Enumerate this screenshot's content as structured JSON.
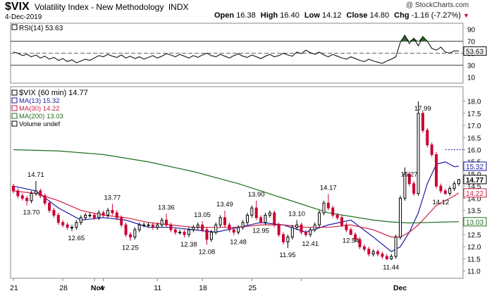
{
  "header": {
    "symbol": "$VIX",
    "name": "Volatility Index - New Methodology",
    "exchange": "INDX",
    "date": "4-Dec-2019",
    "copyright": "@ StockCharts.com",
    "ohlc": [
      {
        "label": "Open",
        "value": "16.38"
      },
      {
        "label": "High",
        "value": "16.40"
      },
      {
        "label": "Low",
        "value": "14.12"
      },
      {
        "label": "Close",
        "value": "14.80"
      },
      {
        "label": "Chg",
        "value": "-1.16 (-7.27%)"
      }
    ],
    "chg_marker": "▼"
  },
  "colors": {
    "candle_up": "#000000",
    "candle_down": "#cc0033",
    "ma13": "#1a1aa6",
    "ma30": "#cc2244",
    "ma200": "#1f6e1f",
    "rsi": "#000000",
    "rsi_fill": "#2f6e2f",
    "current_price_tag": "#000000"
  },
  "chart_data": [
    {
      "type": "line",
      "title": "RSI(14) 53.63",
      "legend": [
        {
          "name": "RSI(14) 53.63"
        }
      ],
      "ylim": [
        0,
        100
      ],
      "y_ticks": [
        "10",
        "30",
        "50",
        "70",
        "90"
      ],
      "reference_lines": [
        30,
        50,
        70
      ],
      "last_value_label": "53.63",
      "series": [
        {
          "name": "RSI(14)",
          "x": [
            0,
            1,
            2,
            3,
            4,
            5,
            6,
            7,
            8,
            9,
            10,
            11,
            12,
            13,
            14,
            15,
            16,
            17,
            18,
            19,
            20,
            21,
            22,
            23,
            24,
            25,
            26,
            27,
            28,
            29,
            30,
            31,
            32,
            33,
            34,
            35,
            36,
            37,
            38,
            39,
            40,
            41,
            42,
            43,
            44,
            45,
            46,
            47,
            48,
            49,
            50,
            51,
            52,
            53,
            54,
            55,
            56,
            57,
            58,
            59,
            60,
            61,
            62,
            63,
            64,
            65,
            66,
            67,
            68,
            69,
            70,
            71,
            72,
            73,
            74,
            75,
            76,
            77,
            78,
            79,
            80,
            81,
            82,
            83,
            84,
            85,
            86,
            87,
            88,
            89,
            90,
            91,
            92,
            93,
            94,
            95,
            96,
            97,
            98,
            99
          ],
          "values": [
            52,
            50,
            46,
            48,
            44,
            47,
            42,
            45,
            40,
            43,
            38,
            41,
            36,
            39,
            34,
            37,
            40,
            38,
            42,
            46,
            44,
            48,
            45,
            43,
            47,
            42,
            45,
            41,
            44,
            40,
            43,
            46,
            42,
            45,
            49,
            47,
            44,
            48,
            45,
            42,
            46,
            43,
            47,
            50,
            46,
            44,
            48,
            45,
            42,
            46,
            49,
            45,
            43,
            47,
            44,
            41,
            45,
            48,
            44,
            46,
            50,
            47,
            45,
            52,
            49,
            55,
            51,
            48,
            52,
            47,
            44,
            48,
            45,
            42,
            40,
            44,
            41,
            38,
            36,
            40,
            37,
            35,
            33,
            37,
            40,
            44,
            68,
            80,
            66,
            75,
            62,
            78,
            70,
            58,
            55,
            60,
            52,
            50,
            54,
            53.63
          ]
        }
      ]
    },
    {
      "type": "candlestick",
      "title": "$VIX (60 min) 14.77",
      "ylim": [
        10.7,
        18.6
      ],
      "y_ticks": [
        "11.0",
        "11.5",
        "12.0",
        "12.5",
        "13.0",
        "13.5",
        "14.0",
        "14.5",
        "15.0",
        "15.5",
        "16.0",
        "16.5",
        "17.0",
        "17.5",
        "18.0"
      ],
      "x_tick_labels": [
        "21",
        "28",
        "Nov",
        "4",
        "11",
        "18",
        "25",
        "Dec"
      ],
      "legend": [
        {
          "name": "$VIX (60 min) 14.77"
        },
        {
          "name": "MA(13) 15.32"
        },
        {
          "name": "MA(30) 14.22"
        },
        {
          "name": "MA(200) 13.03"
        },
        {
          "name": "Volume undef"
        }
      ],
      "right_tags": [
        "15.32",
        "14.77",
        "14.22",
        "13.03"
      ],
      "annotations": [
        {
          "text": "14.71",
          "x": 5,
          "y": 14.71
        },
        {
          "text": "13.70",
          "x": 4,
          "y": 13.7
        },
        {
          "text": "12.65",
          "x": 14,
          "y": 12.65
        },
        {
          "text": "13.77",
          "x": 22,
          "y": 13.77
        },
        {
          "text": "12.25",
          "x": 26,
          "y": 12.25
        },
        {
          "text": "13.36",
          "x": 34,
          "y": 13.36
        },
        {
          "text": "12.38",
          "x": 39,
          "y": 12.38
        },
        {
          "text": "13.05",
          "x": 42,
          "y": 13.05
        },
        {
          "text": "12.08",
          "x": 43,
          "y": 12.08
        },
        {
          "text": "13.49",
          "x": 47,
          "y": 13.49
        },
        {
          "text": "12.48",
          "x": 50,
          "y": 12.48
        },
        {
          "text": "13.90",
          "x": 54,
          "y": 13.9
        },
        {
          "text": "12.95",
          "x": 55,
          "y": 12.95
        },
        {
          "text": "11.95",
          "x": 61,
          "y": 11.95
        },
        {
          "text": "13.10",
          "x": 63,
          "y": 13.1
        },
        {
          "text": "12.41",
          "x": 66,
          "y": 12.41
        },
        {
          "text": "14.17",
          "x": 70,
          "y": 14.17
        },
        {
          "text": "12.54",
          "x": 75,
          "y": 12.54
        },
        {
          "text": "11.44",
          "x": 84,
          "y": 11.44
        },
        {
          "text": "15.27",
          "x": 88,
          "y": 15.27
        },
        {
          "text": "17.99",
          "x": 91,
          "y": 17.99
        },
        {
          "text": "14.12",
          "x": 95,
          "y": 14.12
        }
      ],
      "candles": {
        "x": [
          0,
          1,
          2,
          3,
          4,
          5,
          6,
          7,
          8,
          9,
          10,
          11,
          12,
          13,
          14,
          15,
          16,
          17,
          18,
          19,
          20,
          21,
          22,
          23,
          24,
          25,
          26,
          27,
          28,
          29,
          30,
          31,
          32,
          33,
          34,
          35,
          36,
          37,
          38,
          39,
          40,
          41,
          42,
          43,
          44,
          45,
          46,
          47,
          48,
          49,
          50,
          51,
          52,
          53,
          54,
          55,
          56,
          57,
          58,
          59,
          60,
          61,
          62,
          63,
          64,
          65,
          66,
          67,
          68,
          69,
          70,
          71,
          72,
          73,
          74,
          75,
          76,
          77,
          78,
          79,
          80,
          81,
          82,
          83,
          84,
          85,
          86,
          87,
          88,
          89,
          90,
          91,
          92,
          93,
          94,
          95,
          96,
          97,
          98,
          99
        ],
        "open": [
          14.5,
          14.3,
          14.1,
          14.0,
          13.9,
          14.2,
          14.3,
          14.1,
          13.8,
          13.5,
          13.3,
          13.0,
          12.9,
          12.8,
          12.8,
          13.0,
          13.2,
          13.3,
          13.3,
          13.2,
          13.4,
          13.3,
          13.5,
          13.4,
          13.2,
          12.9,
          12.5,
          12.4,
          12.7,
          12.9,
          12.9,
          12.9,
          12.8,
          12.9,
          13.1,
          12.9,
          12.7,
          12.6,
          12.6,
          12.5,
          12.7,
          12.8,
          12.9,
          12.7,
          12.3,
          12.6,
          12.9,
          13.2,
          12.9,
          12.7,
          12.6,
          12.8,
          13.0,
          13.3,
          13.6,
          13.2,
          13.0,
          13.3,
          13.4,
          12.9,
          12.5,
          12.2,
          12.4,
          12.8,
          12.9,
          12.6,
          12.5,
          12.7,
          12.9,
          13.4,
          13.8,
          13.6,
          13.3,
          13.2,
          12.9,
          12.7,
          12.5,
          12.3,
          12.0,
          11.9,
          11.7,
          11.8,
          11.7,
          11.6,
          11.5,
          11.6,
          12.4,
          14.0,
          15.0,
          14.6,
          14.2,
          17.5,
          16.8,
          16.2,
          15.8,
          14.5,
          14.3,
          14.2,
          14.4,
          14.6
        ],
        "close": [
          14.3,
          14.1,
          14.0,
          13.9,
          14.2,
          14.3,
          14.1,
          13.8,
          13.5,
          13.3,
          13.0,
          12.9,
          12.8,
          12.8,
          13.0,
          13.2,
          13.3,
          13.3,
          13.2,
          13.4,
          13.3,
          13.5,
          13.4,
          13.2,
          12.9,
          12.5,
          12.4,
          12.7,
          12.9,
          12.9,
          12.9,
          12.8,
          12.9,
          13.1,
          12.9,
          12.7,
          12.6,
          12.6,
          12.5,
          12.7,
          12.8,
          12.9,
          12.7,
          12.3,
          12.6,
          12.9,
          13.2,
          12.9,
          12.7,
          12.6,
          12.8,
          13.0,
          13.3,
          13.6,
          13.2,
          13.0,
          13.3,
          13.4,
          12.9,
          12.5,
          12.2,
          12.4,
          12.8,
          12.9,
          12.6,
          12.5,
          12.7,
          12.9,
          13.4,
          13.8,
          13.6,
          13.3,
          13.2,
          12.9,
          12.7,
          12.5,
          12.3,
          12.0,
          11.9,
          11.7,
          11.8,
          11.7,
          11.6,
          11.5,
          11.6,
          12.4,
          14.0,
          15.0,
          14.6,
          14.2,
          17.5,
          16.8,
          16.2,
          15.8,
          14.5,
          14.3,
          14.2,
          14.4,
          14.6,
          14.77
        ],
        "high": [
          14.6,
          14.4,
          14.2,
          14.1,
          14.3,
          14.71,
          14.4,
          14.2,
          13.9,
          13.6,
          13.4,
          13.1,
          13.0,
          12.9,
          13.1,
          13.3,
          13.4,
          13.4,
          13.4,
          13.5,
          13.5,
          13.6,
          13.77,
          13.5,
          13.3,
          13.0,
          12.6,
          12.8,
          13.0,
          13.0,
          13.0,
          13.0,
          13.0,
          13.2,
          13.36,
          13.0,
          12.8,
          12.7,
          12.7,
          12.8,
          12.9,
          13.0,
          13.05,
          12.8,
          12.7,
          13.0,
          13.3,
          13.49,
          13.0,
          12.8,
          12.9,
          13.1,
          13.4,
          13.7,
          13.9,
          13.3,
          13.4,
          13.5,
          13.5,
          13.0,
          12.6,
          12.5,
          12.9,
          13.1,
          13.0,
          12.7,
          12.8,
          13.0,
          13.5,
          13.9,
          14.17,
          13.7,
          13.4,
          13.3,
          13.0,
          12.8,
          12.6,
          12.4,
          12.1,
          12.0,
          11.9,
          11.9,
          11.8,
          11.7,
          11.7,
          12.5,
          14.1,
          15.27,
          15.1,
          14.7,
          17.99,
          17.6,
          16.9,
          16.3,
          15.9,
          14.6,
          14.4,
          14.5,
          14.7,
          14.8
        ],
        "low": [
          14.2,
          14.0,
          13.9,
          13.7,
          13.8,
          14.1,
          14.0,
          13.7,
          13.4,
          13.2,
          12.9,
          12.8,
          12.7,
          12.65,
          12.7,
          12.9,
          13.1,
          13.2,
          13.1,
          13.1,
          13.2,
          13.2,
          13.3,
          13.1,
          12.8,
          12.4,
          12.25,
          12.3,
          12.6,
          12.8,
          12.8,
          12.7,
          12.7,
          12.8,
          12.8,
          12.6,
          12.5,
          12.5,
          12.38,
          12.4,
          12.6,
          12.7,
          12.6,
          12.08,
          12.2,
          12.5,
          12.8,
          12.8,
          12.6,
          12.48,
          12.5,
          12.7,
          12.9,
          13.2,
          13.1,
          12.95,
          12.9,
          13.2,
          12.8,
          12.4,
          12.1,
          11.95,
          12.3,
          12.7,
          12.5,
          12.41,
          12.4,
          12.6,
          12.8,
          13.3,
          13.5,
          13.2,
          13.1,
          12.8,
          12.6,
          12.54,
          12.2,
          11.9,
          11.8,
          11.6,
          11.6,
          11.6,
          11.5,
          11.44,
          11.45,
          11.5,
          12.3,
          13.9,
          14.5,
          14.1,
          14.1,
          16.7,
          16.1,
          15.7,
          14.4,
          14.2,
          14.12,
          14.1,
          14.3,
          14.5
        ]
      },
      "series": [
        {
          "name": "MA(13)",
          "x": [
            0,
            5,
            10,
            15,
            20,
            25,
            30,
            35,
            40,
            45,
            50,
            55,
            60,
            65,
            70,
            75,
            80,
            84,
            86,
            88,
            90,
            92,
            94,
            96,
            98,
            99
          ],
          "values": [
            14.5,
            14.3,
            13.6,
            13.1,
            13.2,
            13.1,
            12.8,
            12.8,
            12.7,
            12.6,
            12.8,
            13.0,
            12.9,
            12.6,
            12.9,
            13.1,
            12.4,
            11.8,
            12.0,
            12.6,
            13.4,
            14.6,
            15.4,
            15.5,
            15.3,
            15.32
          ]
        },
        {
          "name": "MA(30)",
          "x": [
            0,
            5,
            10,
            15,
            20,
            25,
            30,
            35,
            40,
            45,
            50,
            55,
            60,
            65,
            70,
            75,
            80,
            84,
            86,
            88,
            90,
            92,
            94,
            96,
            98,
            99
          ],
          "values": [
            14.3,
            14.2,
            13.9,
            13.5,
            13.3,
            13.2,
            13.0,
            12.9,
            12.8,
            12.8,
            12.8,
            12.9,
            12.9,
            12.8,
            12.8,
            12.9,
            12.7,
            12.4,
            12.4,
            12.6,
            12.9,
            13.3,
            13.7,
            13.9,
            14.1,
            14.22
          ]
        },
        {
          "name": "MA(200)",
          "x": [
            0,
            10,
            20,
            30,
            40,
            50,
            60,
            70,
            80,
            84,
            88,
            92,
            96,
            99
          ],
          "values": [
            16.0,
            15.95,
            15.8,
            15.5,
            15.1,
            14.6,
            14.0,
            13.4,
            13.1,
            13.02,
            12.98,
            13.0,
            13.02,
            13.03
          ]
        }
      ]
    }
  ]
}
